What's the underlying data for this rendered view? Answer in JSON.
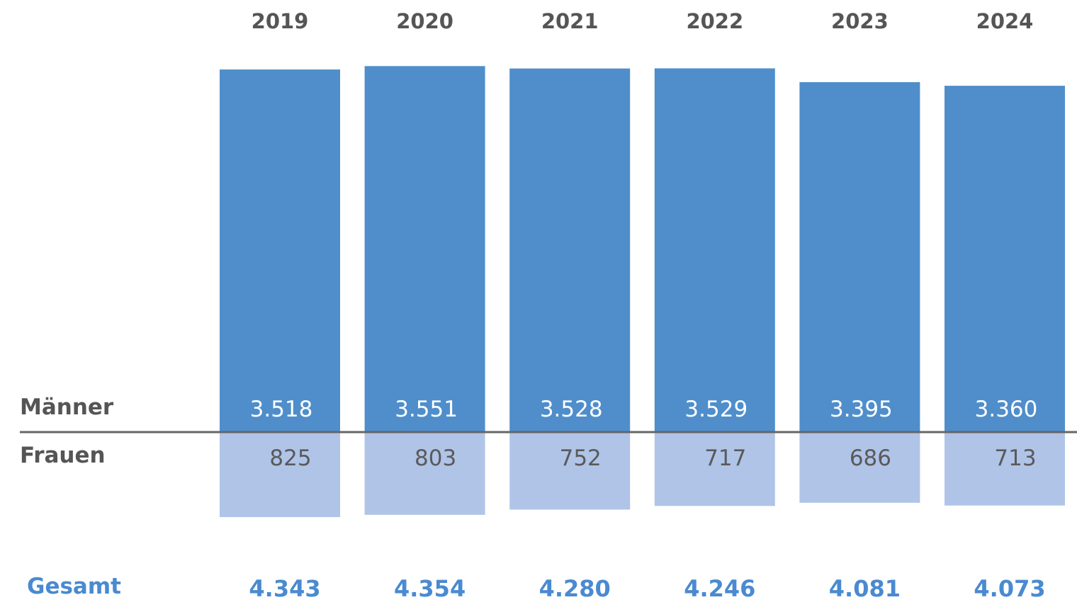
{
  "chart_data": {
    "type": "bar",
    "stacked": "diverging",
    "categories": [
      "2019",
      "2020",
      "2021",
      "2022",
      "2023",
      "2024"
    ],
    "series": [
      {
        "name": "Männer",
        "values": [
          3518,
          3551,
          3528,
          3529,
          3395,
          3360
        ],
        "labels": [
          "3.518",
          "3.551",
          "3.528",
          "3.529",
          "3.395",
          "3.360"
        ],
        "direction": "up",
        "color": "#4f8ecb"
      },
      {
        "name": "Frauen",
        "values": [
          825,
          803,
          752,
          717,
          686,
          713
        ],
        "labels": [
          "825",
          "803",
          "752",
          "717",
          "686",
          "713"
        ],
        "direction": "down",
        "color": "#b0c4e8"
      }
    ],
    "totals": {
      "name": "Gesamt",
      "values": [
        4343,
        4354,
        4280,
        4246,
        4081,
        4073
      ],
      "labels": [
        "4.343",
        "4.354",
        "4.280",
        "4.246",
        "4.081",
        "4.073"
      ],
      "color": "#4a8ad0"
    },
    "baseline_color": "#666666",
    "label_color": "#555555",
    "grid": false,
    "legend": "left"
  }
}
